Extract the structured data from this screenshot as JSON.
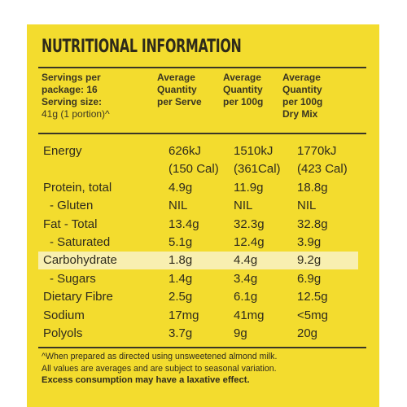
{
  "title": "NUTRITIONAL INFORMATION",
  "header": {
    "servings_line1": "Servings per",
    "servings_line2": "package: 16",
    "serving_size_line1": "Serving size:",
    "serving_size_line2": "41g (1 portion)^",
    "col1_line1": "Average",
    "col1_line2": "Quantity",
    "col1_line3": "per Serve",
    "col2_line1": "Average",
    "col2_line2": "Quantity",
    "col2_line3": "per 100g",
    "col3_line1": "Average",
    "col3_line2": "Quantity",
    "col3_line3": "per 100g",
    "col3_line4": "Dry Mix"
  },
  "rows": [
    {
      "name": "Energy",
      "v1": "626kJ",
      "v2": "1510kJ",
      "v3": "1770kJ"
    },
    {
      "name": "",
      "v1": "(150 Cal)",
      "v2": "(361Cal)",
      "v3": "(423 Cal)"
    },
    {
      "name": "Protein, total",
      "v1": "4.9g",
      "v2": "11.9g",
      "v3": "18.8g"
    },
    {
      "name": "- Gluten",
      "v1": "NIL",
      "v2": "NIL",
      "v3": "NIL"
    },
    {
      "name": "Fat - Total",
      "v1": "13.4g",
      "v2": "32.3g",
      "v3": "32.8g"
    },
    {
      "name": "- Saturated",
      "v1": "5.1g",
      "v2": "12.4g",
      "v3": "3.9g"
    },
    {
      "name": "Carbohydrate",
      "v1": "1.8g",
      "v2": "4.4g",
      "v3": "9.2g"
    },
    {
      "name": "- Sugars",
      "v1": "1.4g",
      "v2": "3.4g",
      "v3": "6.9g"
    },
    {
      "name": "Dietary Fibre",
      "v1": "2.5g",
      "v2": "6.1g",
      "v3": "12.5g"
    },
    {
      "name": "Sodium",
      "v1": "17mg",
      "v2": "41mg",
      "v3": "<5mg"
    },
    {
      "name": "Polyols",
      "v1": "3.7g",
      "v2": "9g",
      "v3": "20g"
    }
  ],
  "footnote": {
    "line1": "^When prepared as directed using unsweetened almond milk.",
    "line2": "All values are averages and are subject to seasonal variation.",
    "line3": "Excess consumption may have a laxative effect."
  },
  "colors": {
    "panel": "#f3dc2e",
    "highlight": "#f8efb0",
    "text": "#2f2b1d"
  }
}
